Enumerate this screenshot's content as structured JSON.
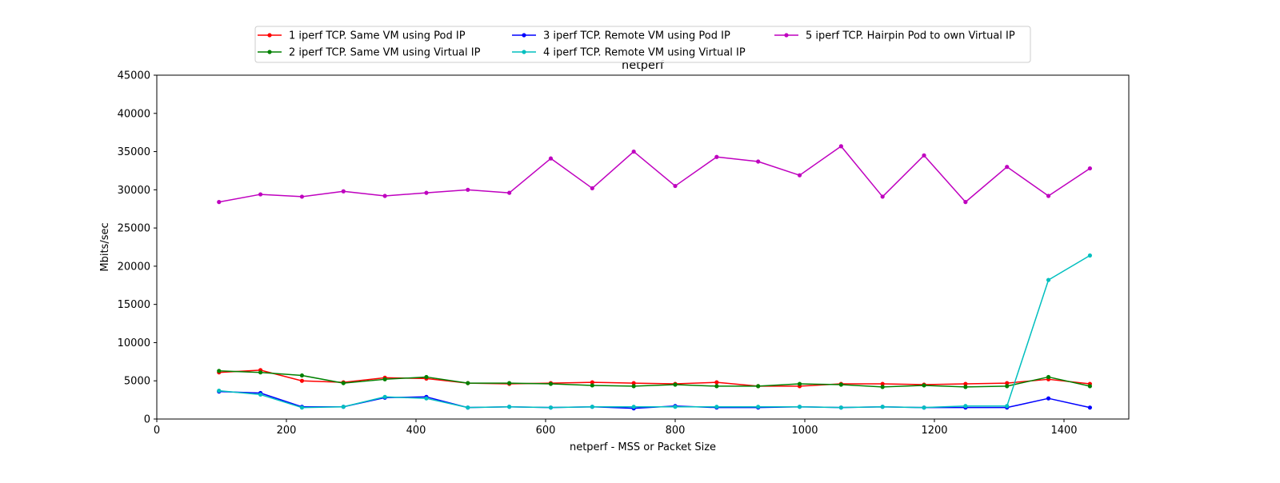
{
  "chart_data": {
    "type": "line",
    "title": "netperf",
    "xlabel": "netperf - MSS or Packet Size",
    "ylabel": "Mbits/sec",
    "xlim": [
      0,
      1500
    ],
    "ylim": [
      0,
      45000
    ],
    "xticks": [
      0,
      200,
      400,
      600,
      800,
      1000,
      1200,
      1400
    ],
    "yticks": [
      0,
      5000,
      10000,
      15000,
      20000,
      25000,
      30000,
      35000,
      40000,
      45000
    ],
    "grid": false,
    "legend_position": "top-center",
    "x": [
      96,
      160,
      224,
      288,
      352,
      416,
      480,
      544,
      608,
      672,
      736,
      800,
      864,
      928,
      992,
      1056,
      1120,
      1184,
      1248,
      1312,
      1376,
      1440
    ],
    "series": [
      {
        "name": "1 iperf TCP. Same VM using Pod IP",
        "color": "#ff0000",
        "values": [
          6100,
          6400,
          5000,
          4800,
          5400,
          5300,
          4700,
          4600,
          4700,
          4800,
          4700,
          4600,
          4800,
          4300,
          4300,
          4600,
          4600,
          4500,
          4600,
          4700,
          5200,
          4600
        ]
      },
      {
        "name": "2 iperf TCP. Same VM using Virtual IP",
        "color": "#008000",
        "values": [
          6300,
          6100,
          5700,
          4700,
          5200,
          5500,
          4700,
          4700,
          4600,
          4400,
          4300,
          4500,
          4300,
          4300,
          4600,
          4500,
          4200,
          4400,
          4200,
          4300,
          5500,
          4300
        ]
      },
      {
        "name": "3 iperf TCP. Remote VM using Pod IP",
        "color": "#0000ff",
        "values": [
          3600,
          3400,
          1600,
          1600,
          2800,
          2900,
          1500,
          1600,
          1500,
          1600,
          1400,
          1700,
          1500,
          1500,
          1600,
          1500,
          1600,
          1500,
          1500,
          1500,
          2700,
          1500
        ]
      },
      {
        "name": "4 iperf TCP. Remote VM using Virtual IP",
        "color": "#00bfbf",
        "values": [
          3700,
          3200,
          1500,
          1600,
          2900,
          2700,
          1500,
          1600,
          1500,
          1600,
          1600,
          1600,
          1600,
          1600,
          1600,
          1500,
          1600,
          1500,
          1700,
          1700,
          18200,
          21400
        ]
      },
      {
        "name": "5 iperf TCP. Hairpin Pod to own Virtual IP",
        "color": "#bf00bf",
        "values": [
          28400,
          29400,
          29100,
          29800,
          29200,
          29600,
          30000,
          29600,
          34100,
          30200,
          35000,
          30500,
          34300,
          33700,
          31900,
          35700,
          29100,
          34500,
          28400,
          33000,
          29200,
          32800
        ]
      }
    ]
  }
}
